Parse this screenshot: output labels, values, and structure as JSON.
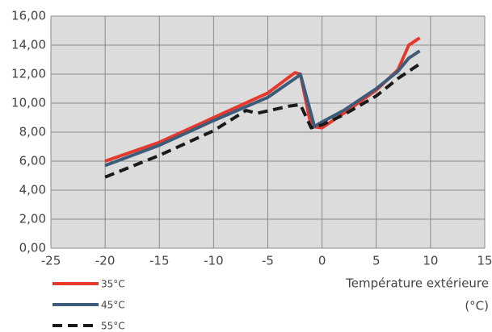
{
  "chart_data": {
    "type": "line",
    "xlabel": [
      "Température extérieure",
      "(°C)"
    ],
    "xlim": [
      -25,
      15
    ],
    "xticks": [
      -25,
      -20,
      -15,
      -10,
      -5,
      0,
      5,
      10,
      15
    ],
    "ylim": [
      0,
      16
    ],
    "yticks": [
      {
        "value": 0,
        "label": "0,00"
      },
      {
        "value": 2,
        "label": "2,00"
      },
      {
        "value": 4,
        "label": "4,00"
      },
      {
        "value": 6,
        "label": "6,00"
      },
      {
        "value": 8,
        "label": "8,00"
      },
      {
        "value": 10,
        "label": "10,00"
      },
      {
        "value": 12,
        "label": "12,00"
      },
      {
        "value": 14,
        "label": "14,00"
      },
      {
        "value": 16,
        "label": "16,00"
      }
    ],
    "grid": true,
    "legend": "bottom-left",
    "series": [
      {
        "name": "35°C",
        "color": "#e5392e",
        "dash": false,
        "x": [
          -20,
          -15,
          -10,
          -5,
          -2.5,
          -2,
          -1,
          0,
          2,
          5,
          7,
          8,
          9
        ],
        "values": [
          6.0,
          7.3,
          9.0,
          10.7,
          12.1,
          12.0,
          8.4,
          8.3,
          9.3,
          10.9,
          12.3,
          14.0,
          14.5
        ]
      },
      {
        "name": "45°C",
        "color": "#3d5c7a",
        "dash": false,
        "x": [
          -20,
          -15,
          -10,
          -5,
          -2.3,
          -2,
          -0.7,
          0,
          2,
          5,
          7,
          8,
          9
        ],
        "values": [
          5.7,
          7.1,
          8.8,
          10.4,
          11.8,
          12.0,
          8.4,
          8.7,
          9.5,
          11.0,
          12.2,
          13.1,
          13.6
        ]
      },
      {
        "name": "55°C",
        "color": "#1a1a1a",
        "dash": true,
        "x": [
          -20,
          -15,
          -10,
          -7,
          -6,
          -3,
          -2,
          -1,
          0,
          2,
          5,
          7,
          9
        ],
        "values": [
          4.9,
          6.4,
          8.1,
          9.5,
          9.3,
          9.8,
          9.9,
          8.3,
          8.5,
          9.2,
          10.5,
          11.7,
          12.7
        ]
      }
    ]
  }
}
